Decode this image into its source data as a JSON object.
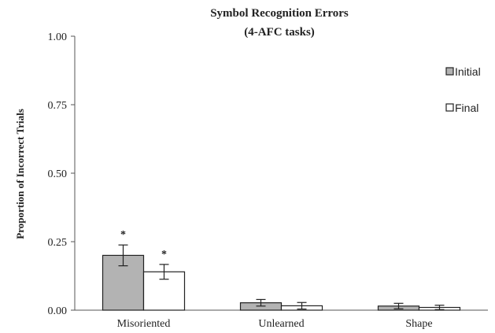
{
  "chart_data": {
    "type": "bar",
    "title": "Symbol Recognition Errors",
    "subtitle": "(4-AFC tasks)",
    "ylabel": "Proportion of Incorrect Trials",
    "xlabel": "",
    "ylim": [
      0,
      1.0
    ],
    "yticks": [
      "0.00",
      "0.25",
      "0.50",
      "0.75",
      "1.00"
    ],
    "ytick_values": [
      0,
      0.25,
      0.5,
      0.75,
      1.0
    ],
    "categories": [
      "Misoriented",
      "Unlearned",
      "Shape"
    ],
    "series": [
      {
        "name": "Initial",
        "color": "#b3b3b3",
        "values": [
          0.2,
          0.027,
          0.015
        ],
        "errors": [
          0.038,
          0.012,
          0.01
        ]
      },
      {
        "name": "Final",
        "color": "#ffffff",
        "values": [
          0.14,
          0.016,
          0.01
        ],
        "errors": [
          0.027,
          0.012,
          0.008
        ]
      }
    ],
    "annotations": [
      {
        "category": "Misoriented",
        "series": "Initial",
        "text": "*"
      },
      {
        "category": "Misoriented",
        "series": "Final",
        "text": "*"
      }
    ],
    "grid": false,
    "legend_position": "top-right"
  }
}
